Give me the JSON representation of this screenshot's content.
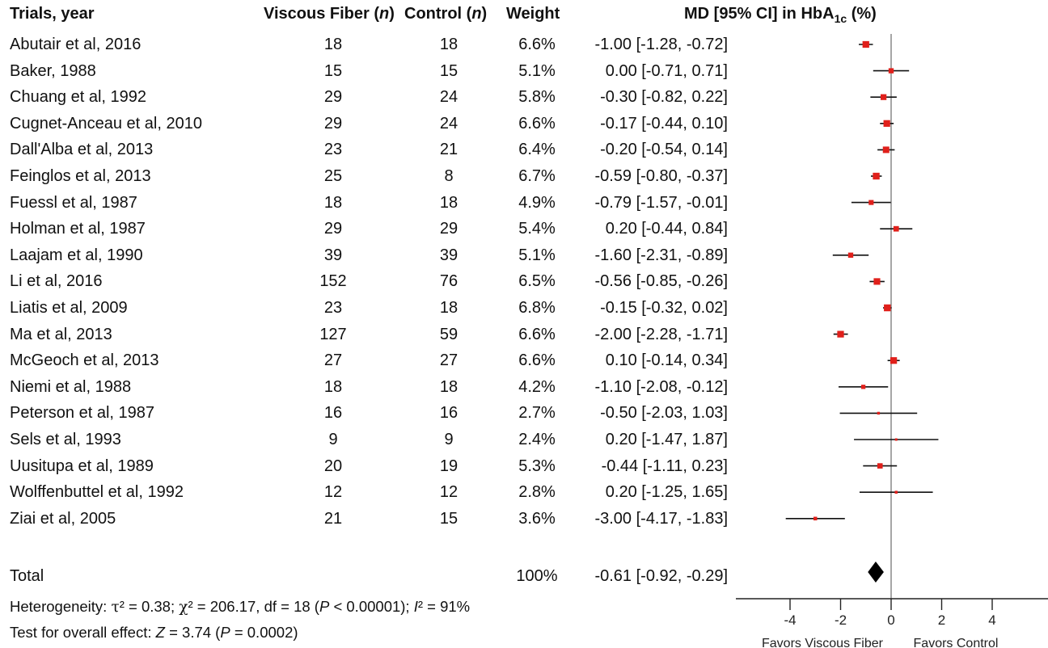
{
  "headers": {
    "trial": "Trials, year",
    "fiber": "Viscous Fiber",
    "control": "Control",
    "n": "n",
    "weight": "Weight",
    "md_prefix": "MD [95% CI] in HbA",
    "md_sub": "1c",
    "md_suffix": " (%)"
  },
  "footer": {
    "het_prefix": "Heterogeneity: ",
    "tau_sym": "τ",
    "tau_val": "² = 0.38; ",
    "chi_sym": "χ",
    "chi_val": "² = 206.17, df = 18 (",
    "p1_label": "P",
    "p1_val": " < 0.00001); ",
    "i2_label": "I",
    "i2_val": "² = 91%",
    "overall_prefix": "Test for overall effect: ",
    "z_label": "Z",
    "z_val": " = 3.74 (",
    "p2_label": "P",
    "p2_val": " = 0.0002)"
  },
  "chart_data": {
    "type": "forest",
    "x_ticks": [
      "-4",
      "-2",
      "0",
      "2",
      "4"
    ],
    "x_tick_values": [
      -4,
      -2,
      0,
      2,
      4
    ],
    "xlabel_left": "Favors Viscous Fiber",
    "xlabel_right": "Favors Control",
    "marker_color": "#e0201b",
    "studies": [
      {
        "name": "Abutair et al, 2016",
        "fiber_n": "18",
        "control_n": "18",
        "weight": "6.6%",
        "ci_text": "-1.00 [-1.28, -0.72]",
        "md": -1.0,
        "lo": -1.28,
        "hi": -0.72,
        "w": 6.6
      },
      {
        "name": "Baker, 1988",
        "fiber_n": "15",
        "control_n": "15",
        "weight": "5.1%",
        "ci_text": "0.00 [-0.71, 0.71]",
        "md": 0.0,
        "lo": -0.71,
        "hi": 0.71,
        "w": 5.1
      },
      {
        "name": "Chuang et al, 1992",
        "fiber_n": "29",
        "control_n": "24",
        "weight": "5.8%",
        "ci_text": "-0.30 [-0.82, 0.22]",
        "md": -0.3,
        "lo": -0.82,
        "hi": 0.22,
        "w": 5.8
      },
      {
        "name": "Cugnet-Anceau et al, 2010",
        "fiber_n": "29",
        "control_n": "24",
        "weight": "6.6%",
        "ci_text": "-0.17 [-0.44, 0.10]",
        "md": -0.17,
        "lo": -0.44,
        "hi": 0.1,
        "w": 6.6
      },
      {
        "name": "Dall'Alba et al, 2013",
        "fiber_n": "23",
        "control_n": "21",
        "weight": "6.4%",
        "ci_text": "-0.20 [-0.54, 0.14]",
        "md": -0.2,
        "lo": -0.54,
        "hi": 0.14,
        "w": 6.4
      },
      {
        "name": "Feinglos et al, 2013",
        "fiber_n": "25",
        "control_n": "8",
        "weight": "6.7%",
        "ci_text": "-0.59 [-0.80, -0.37]",
        "md": -0.59,
        "lo": -0.8,
        "hi": -0.37,
        "w": 6.7
      },
      {
        "name": "Fuessl et al, 1987",
        "fiber_n": "18",
        "control_n": "18",
        "weight": "4.9%",
        "ci_text": "-0.79 [-1.57, -0.01]",
        "md": -0.79,
        "lo": -1.57,
        "hi": -0.01,
        "w": 4.9
      },
      {
        "name": "Holman et al, 1987",
        "fiber_n": "29",
        "control_n": "29",
        "weight": "5.4%",
        "ci_text": "0.20 [-0.44, 0.84]",
        "md": 0.2,
        "lo": -0.44,
        "hi": 0.84,
        "w": 5.4
      },
      {
        "name": "Laajam et al, 1990",
        "fiber_n": "39",
        "control_n": "39",
        "weight": "5.1%",
        "ci_text": "-1.60 [-2.31, -0.89]",
        "md": -1.6,
        "lo": -2.31,
        "hi": -0.89,
        "w": 5.1
      },
      {
        "name": "Li et al, 2016",
        "fiber_n": "152",
        "control_n": "76",
        "weight": "6.5%",
        "ci_text": "-0.56 [-0.85, -0.26]",
        "md": -0.56,
        "lo": -0.85,
        "hi": -0.26,
        "w": 6.5
      },
      {
        "name": "Liatis et al, 2009",
        "fiber_n": "23",
        "control_n": "18",
        "weight": "6.8%",
        "ci_text": "-0.15 [-0.32, 0.02]",
        "md": -0.15,
        "lo": -0.32,
        "hi": 0.02,
        "w": 6.8
      },
      {
        "name": "Ma et al, 2013",
        "fiber_n": "127",
        "control_n": "59",
        "weight": "6.6%",
        "ci_text": "-2.00 [-2.28, -1.71]",
        "md": -2.0,
        "lo": -2.28,
        "hi": -1.71,
        "w": 6.6
      },
      {
        "name": "McGeoch et al, 2013",
        "fiber_n": "27",
        "control_n": "27",
        "weight": "6.6%",
        "ci_text": "0.10 [-0.14, 0.34]",
        "md": 0.1,
        "lo": -0.14,
        "hi": 0.34,
        "w": 6.6
      },
      {
        "name": "Niemi et al, 1988",
        "fiber_n": "18",
        "control_n": "18",
        "weight": "4.2%",
        "ci_text": "-1.10 [-2.08, -0.12]",
        "md": -1.1,
        "lo": -2.08,
        "hi": -0.12,
        "w": 4.2
      },
      {
        "name": "Peterson et al, 1987",
        "fiber_n": "16",
        "control_n": "16",
        "weight": "2.7%",
        "ci_text": "-0.50 [-2.03, 1.03]",
        "md": -0.5,
        "lo": -2.03,
        "hi": 1.03,
        "w": 2.7
      },
      {
        "name": "Sels et al, 1993",
        "fiber_n": "9",
        "control_n": "9",
        "weight": "2.4%",
        "ci_text": "0.20 [-1.47, 1.87]",
        "md": 0.2,
        "lo": -1.47,
        "hi": 1.87,
        "w": 2.4
      },
      {
        "name": "Uusitupa et al, 1989",
        "fiber_n": "20",
        "control_n": "19",
        "weight": "5.3%",
        "ci_text": "-0.44 [-1.11, 0.23]",
        "md": -0.44,
        "lo": -1.11,
        "hi": 0.23,
        "w": 5.3
      },
      {
        "name": "Wolffenbuttel et al, 1992",
        "fiber_n": "12",
        "control_n": "12",
        "weight": "2.8%",
        "ci_text": "0.20 [-1.25, 1.65]",
        "md": 0.2,
        "lo": -1.25,
        "hi": 1.65,
        "w": 2.8
      },
      {
        "name": "Ziai et al, 2005",
        "fiber_n": "21",
        "control_n": "15",
        "weight": "3.6%",
        "ci_text": "-3.00 [-4.17, -1.83]",
        "md": -3.0,
        "lo": -4.17,
        "hi": -1.83,
        "w": 3.6
      }
    ],
    "total": {
      "name": "Total",
      "weight": "100%",
      "ci_text": "-0.61 [-0.92, -0.29]",
      "md": -0.61,
      "lo": -0.92,
      "hi": -0.29
    }
  }
}
